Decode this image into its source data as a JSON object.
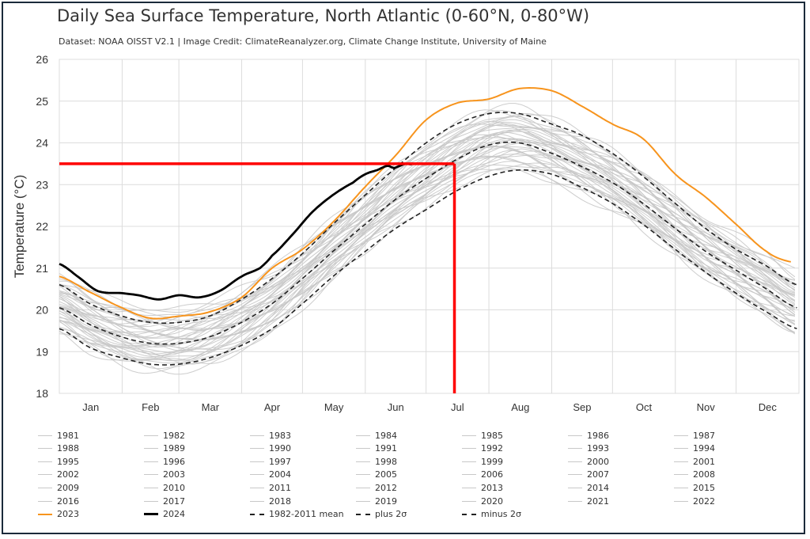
{
  "chart_data": {
    "type": "line",
    "title": "Daily Sea Surface Temperature, North Atlantic (0-60°N, 0-80°W)",
    "subtitle": "Dataset: NOAA OISST V2.1 | Image Credit: ClimateReanalyzer.org, Climate Change Institute, University of Maine",
    "xlabel": "",
    "ylabel": "Temperature (°C)",
    "xlim": [
      1,
      366
    ],
    "ylim": [
      18,
      26
    ],
    "yticks": [
      "18",
      "19",
      "20",
      "21",
      "22",
      "23",
      "24",
      "25",
      "26"
    ],
    "month_labels": [
      "Jan",
      "Feb",
      "Mar",
      "Apr",
      "May",
      "Jun",
      "Jul",
      "Aug",
      "Sep",
      "Oct",
      "Nov",
      "Dec"
    ],
    "grid": true,
    "annotations": {
      "hline_y": 23.5,
      "vline_day": 196,
      "color": "#ff0000"
    },
    "series": [
      {
        "name": "2023",
        "color": "#f7941d",
        "style": "solid",
        "x": [
          1,
          15,
          32,
          46,
          60,
          75,
          91,
          106,
          121,
          136,
          152,
          167,
          182,
          197,
          213,
          228,
          244,
          258,
          274,
          289,
          305,
          320,
          335,
          350,
          362
        ],
        "y": [
          20.8,
          20.45,
          20.05,
          19.8,
          19.85,
          19.95,
          20.3,
          21.0,
          21.45,
          22.1,
          22.95,
          23.7,
          24.55,
          24.95,
          25.05,
          25.3,
          25.25,
          24.9,
          24.45,
          24.1,
          23.25,
          22.7,
          22.05,
          21.4,
          21.15
        ]
      },
      {
        "name": "2024",
        "color": "#000000",
        "style": "solid",
        "x": [
          1,
          10,
          20,
          32,
          40,
          50,
          60,
          70,
          80,
          91,
          100,
          106,
          116,
          126,
          136,
          146,
          152,
          158,
          163,
          166,
          169,
          172,
          175
        ],
        "y": [
          21.1,
          20.8,
          20.45,
          20.4,
          20.35,
          20.25,
          20.35,
          20.3,
          20.45,
          20.8,
          21.0,
          21.3,
          21.8,
          22.35,
          22.75,
          23.05,
          23.25,
          23.35,
          23.45,
          23.4,
          23.45,
          23.5,
          23.48
        ]
      },
      {
        "name": "1982-2011 mean",
        "color": "#222222",
        "style": "dashed",
        "x": [
          1,
          16,
          32,
          46,
          60,
          75,
          91,
          106,
          121,
          136,
          152,
          167,
          182,
          197,
          213,
          228,
          244,
          258,
          274,
          289,
          305,
          320,
          335,
          350,
          365
        ],
        "y": [
          20.05,
          19.65,
          19.35,
          19.2,
          19.2,
          19.35,
          19.7,
          20.15,
          20.75,
          21.4,
          22.05,
          22.65,
          23.15,
          23.6,
          23.95,
          24.0,
          23.75,
          23.45,
          23.05,
          22.55,
          21.95,
          21.4,
          20.95,
          20.5,
          20.05
        ]
      },
      {
        "name": "plus 2σ",
        "color": "#222222",
        "style": "dashed",
        "x": [
          1,
          16,
          32,
          46,
          60,
          75,
          91,
          106,
          121,
          136,
          152,
          167,
          182,
          197,
          213,
          228,
          244,
          258,
          274,
          289,
          305,
          320,
          335,
          350,
          365
        ],
        "y": [
          20.6,
          20.15,
          19.85,
          19.7,
          19.7,
          19.85,
          20.25,
          20.75,
          21.35,
          22.05,
          22.75,
          23.4,
          24.0,
          24.45,
          24.7,
          24.7,
          24.45,
          24.2,
          23.75,
          23.2,
          22.55,
          21.95,
          21.45,
          21.05,
          20.6
        ]
      },
      {
        "name": "minus 2σ",
        "color": "#222222",
        "style": "dashed",
        "x": [
          1,
          16,
          32,
          46,
          60,
          75,
          91,
          106,
          121,
          136,
          152,
          167,
          182,
          197,
          213,
          228,
          244,
          258,
          274,
          289,
          305,
          320,
          335,
          350,
          365
        ],
        "y": [
          19.55,
          19.1,
          18.85,
          18.7,
          18.7,
          18.85,
          19.15,
          19.55,
          20.15,
          20.8,
          21.4,
          21.95,
          22.4,
          22.85,
          23.2,
          23.35,
          23.25,
          22.95,
          22.55,
          22.05,
          21.45,
          20.9,
          20.4,
          19.95,
          19.55
        ]
      }
    ],
    "background_years": [
      "1981",
      "1982",
      "1983",
      "1984",
      "1985",
      "1986",
      "1987",
      "1988",
      "1989",
      "1990",
      "1991",
      "1992",
      "1993",
      "1994",
      "1995",
      "1996",
      "1997",
      "1998",
      "1999",
      "2000",
      "2001",
      "2002",
      "2003",
      "2004",
      "2005",
      "2006",
      "2007",
      "2008",
      "2009",
      "2010",
      "2011",
      "2012",
      "2013",
      "2014",
      "2015",
      "2016",
      "2017",
      "2018",
      "2019",
      "2020",
      "2021",
      "2022"
    ],
    "background_color": "#c8c8c8",
    "legend": [
      "1981",
      "1982",
      "1983",
      "1984",
      "1985",
      "1986",
      "1987",
      "1988",
      "1989",
      "1990",
      "1991",
      "1992",
      "1993",
      "1994",
      "1995",
      "1996",
      "1997",
      "1998",
      "1999",
      "2000",
      "2001",
      "2002",
      "2003",
      "2004",
      "2005",
      "2006",
      "2007",
      "2008",
      "2009",
      "2010",
      "2011",
      "2012",
      "2013",
      "2014",
      "2015",
      "2016",
      "2017",
      "2018",
      "2019",
      "2020",
      "2021",
      "2022",
      "2023",
      "2024",
      "1982-2011 mean",
      "plus 2σ",
      "minus 2σ"
    ]
  }
}
